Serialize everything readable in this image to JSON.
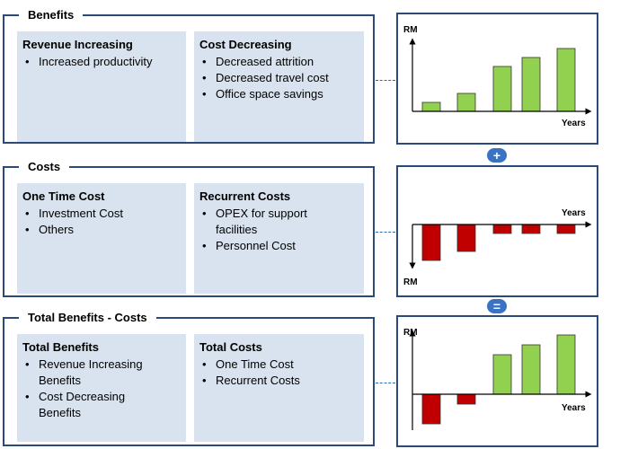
{
  "benefits": {
    "title": "Benefits",
    "left": {
      "title": "Revenue Increasing",
      "items": [
        "Increased productivity"
      ]
    },
    "right": {
      "title": "Cost Decreasing",
      "items": [
        "Decreased attrition",
        "Decreased travel cost",
        "Office space savings"
      ]
    }
  },
  "costs": {
    "title": "Costs",
    "left": {
      "title": "One Time Cost",
      "items": [
        "Investment Cost",
        "Others"
      ]
    },
    "right": {
      "title": "Recurrent Costs",
      "items": [
        "OPEX for support facilities",
        "Personnel Cost"
      ]
    }
  },
  "total": {
    "title": "Total Benefits - Costs",
    "left": {
      "title": "Total Benefits",
      "items": [
        "Revenue Increasing Benefits",
        "Cost Decreasing Benefits"
      ]
    },
    "right": {
      "title": "Total Costs",
      "items": [
        "One Time Cost",
        "Recurrent Costs"
      ]
    }
  },
  "operators": {
    "plus": "+",
    "equals": "="
  },
  "colors": {
    "border": "#2b4a7a",
    "box_fill": "#d9e3ef",
    "positive_bar": "#92d050",
    "negative_bar": "#c00000",
    "operator": "#3a73c4"
  },
  "chart_data": [
    {
      "type": "bar",
      "ylabel": "RM",
      "xlabel": "Years",
      "values": [
        1,
        2,
        5,
        6,
        7
      ]
    },
    {
      "type": "bar",
      "ylabel": "RM",
      "xlabel": "Years",
      "values": [
        -4,
        -3,
        -1,
        -1,
        -1
      ]
    },
    {
      "type": "bar",
      "ylabel": "RM",
      "xlabel": "Years",
      "values": [
        -3,
        -1,
        4,
        5,
        6
      ]
    }
  ]
}
